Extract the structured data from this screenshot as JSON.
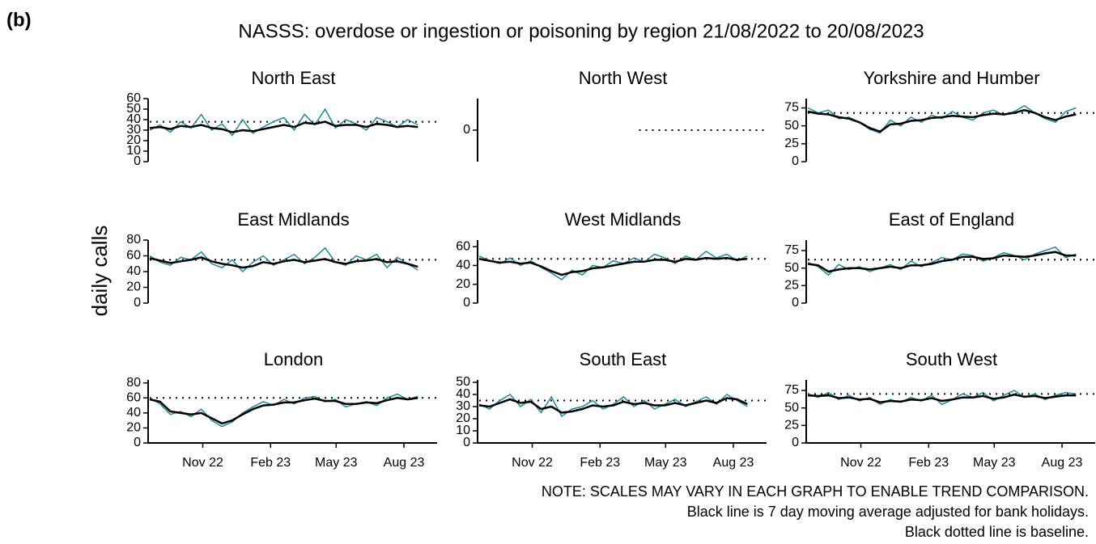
{
  "label_b": "(b)",
  "title": "NASSS: overdose or ingestion or poisoning by region 21/08/2022 to 20/08/2023",
  "y_label": "daily calls",
  "notes": [
    "NOTE: SCALES MAY VARY IN EACH GRAPH TO ENABLE TREND COMPARISON.",
    "Black line is 7 day moving average adjusted for bank holidays.",
    "Black dotted line is baseline."
  ],
  "chart_data": [
    {
      "type": "line",
      "title": "North East",
      "xlim": [
        0,
        390
      ],
      "ylim": [
        0,
        60
      ],
      "yticks": [
        0,
        10,
        20,
        30,
        40,
        50,
        60
      ],
      "baseline": 38,
      "x": [
        0,
        14,
        28,
        42,
        56,
        70,
        84,
        98,
        112,
        126,
        140,
        154,
        168,
        182,
        196,
        210,
        224,
        238,
        252,
        266,
        280,
        294,
        308,
        322,
        336,
        350,
        364
      ],
      "series": [
        {
          "color": "#1a8a9a",
          "values": [
            30,
            35,
            28,
            38,
            32,
            45,
            30,
            36,
            25,
            40,
            27,
            33,
            38,
            42,
            30,
            45,
            35,
            50,
            32,
            40,
            36,
            30,
            42,
            38,
            33,
            40,
            35
          ]
        },
        {
          "color": "#000000",
          "values": [
            32,
            33,
            31,
            34,
            33,
            35,
            32,
            31,
            28,
            30,
            29,
            31,
            33,
            35,
            33,
            37,
            36,
            38,
            34,
            35,
            35,
            33,
            36,
            35,
            33,
            34,
            33
          ]
        }
      ]
    },
    {
      "type": "line",
      "title": "North West",
      "xlim": [
        0,
        390
      ],
      "ylim": [
        -1,
        1
      ],
      "yticks": [
        0
      ],
      "baseline": 0,
      "x": [],
      "series": []
    },
    {
      "type": "line",
      "title": "Yorkshire and Humber",
      "xlim": [
        0,
        390
      ],
      "ylim": [
        0,
        88
      ],
      "yticks": [
        0,
        25,
        50,
        75
      ],
      "baseline": 68,
      "x": [
        0,
        14,
        28,
        42,
        56,
        70,
        84,
        98,
        112,
        126,
        140,
        154,
        168,
        182,
        196,
        210,
        224,
        238,
        252,
        266,
        280,
        294,
        308,
        322,
        336,
        350,
        364
      ],
      "series": [
        {
          "color": "#1a8a9a",
          "values": [
            75,
            68,
            72,
            60,
            62,
            55,
            45,
            40,
            58,
            50,
            62,
            55,
            65,
            60,
            70,
            62,
            58,
            68,
            72,
            65,
            70,
            78,
            68,
            60,
            55,
            70,
            75
          ]
        },
        {
          "color": "#000000",
          "values": [
            70,
            67,
            66,
            62,
            60,
            55,
            47,
            42,
            52,
            53,
            57,
            58,
            61,
            62,
            64,
            63,
            62,
            65,
            67,
            66,
            68,
            72,
            68,
            62,
            58,
            63,
            66
          ]
        }
      ]
    },
    {
      "type": "line",
      "title": "East Midlands",
      "xlim": [
        0,
        390
      ],
      "ylim": [
        0,
        80
      ],
      "yticks": [
        0,
        20,
        40,
        60,
        80
      ],
      "baseline": 55,
      "x": [
        0,
        14,
        28,
        42,
        56,
        70,
        84,
        98,
        112,
        126,
        140,
        154,
        168,
        182,
        196,
        210,
        224,
        238,
        252,
        266,
        280,
        294,
        308,
        322,
        336,
        350,
        364
      ],
      "series": [
        {
          "color": "#1a8a9a",
          "values": [
            60,
            52,
            48,
            58,
            55,
            65,
            50,
            45,
            55,
            40,
            52,
            60,
            48,
            55,
            62,
            50,
            58,
            70,
            52,
            48,
            60,
            55,
            62,
            45,
            58,
            50,
            42
          ]
        },
        {
          "color": "#000000",
          "values": [
            57,
            54,
            51,
            53,
            55,
            58,
            53,
            50,
            48,
            45,
            47,
            52,
            50,
            53,
            55,
            52,
            54,
            56,
            52,
            50,
            53,
            54,
            56,
            52,
            53,
            50,
            46
          ]
        }
      ]
    },
    {
      "type": "line",
      "title": "West Midlands",
      "xlim": [
        0,
        390
      ],
      "ylim": [
        0,
        67
      ],
      "yticks": [
        0,
        20,
        40,
        60
      ],
      "baseline": 47,
      "x": [
        0,
        14,
        28,
        42,
        56,
        70,
        84,
        98,
        112,
        126,
        140,
        154,
        168,
        182,
        196,
        210,
        224,
        238,
        252,
        266,
        280,
        294,
        308,
        322,
        336,
        350,
        364
      ],
      "series": [
        {
          "color": "#1a8a9a",
          "values": [
            50,
            45,
            42,
            48,
            40,
            45,
            38,
            32,
            25,
            35,
            30,
            40,
            38,
            45,
            42,
            48,
            44,
            52,
            48,
            42,
            50,
            46,
            55,
            48,
            52,
            45,
            50
          ]
        },
        {
          "color": "#000000",
          "values": [
            47,
            45,
            43,
            44,
            42,
            43,
            39,
            34,
            30,
            33,
            34,
            37,
            38,
            40,
            42,
            44,
            44,
            46,
            46,
            44,
            47,
            46,
            48,
            47,
            48,
            46,
            47
          ]
        }
      ]
    },
    {
      "type": "line",
      "title": "East of England",
      "xlim": [
        0,
        390
      ],
      "ylim": [
        0,
        90
      ],
      "yticks": [
        0,
        25,
        50,
        75
      ],
      "baseline": 62,
      "x": [
        0,
        14,
        28,
        42,
        56,
        70,
        84,
        98,
        112,
        126,
        140,
        154,
        168,
        182,
        196,
        210,
        224,
        238,
        252,
        266,
        280,
        294,
        308,
        322,
        336,
        350,
        364
      ],
      "series": [
        {
          "color": "#1a8a9a",
          "values": [
            58,
            52,
            40,
            55,
            48,
            52,
            45,
            50,
            55,
            48,
            60,
            52,
            58,
            65,
            62,
            70,
            68,
            60,
            65,
            72,
            68,
            62,
            70,
            75,
            80,
            65,
            70
          ]
        },
        {
          "color": "#000000",
          "values": [
            56,
            54,
            45,
            48,
            50,
            50,
            48,
            50,
            52,
            50,
            54,
            54,
            56,
            60,
            62,
            66,
            66,
            63,
            64,
            68,
            67,
            66,
            68,
            71,
            73,
            68,
            68
          ]
        }
      ]
    },
    {
      "type": "line",
      "title": "London",
      "xlim": [
        0,
        390
      ],
      "ylim": [
        0,
        84
      ],
      "yticks": [
        0,
        20,
        40,
        60,
        80
      ],
      "baseline": 60,
      "xticks": [
        {
          "value": 72,
          "label": "Nov 22"
        },
        {
          "value": 164,
          "label": "Feb 23"
        },
        {
          "value": 253,
          "label": "May 23"
        },
        {
          "value": 345,
          "label": "Aug 23"
        }
      ],
      "x": [
        0,
        14,
        28,
        42,
        56,
        70,
        84,
        98,
        112,
        126,
        140,
        154,
        168,
        182,
        196,
        210,
        224,
        238,
        252,
        266,
        280,
        294,
        308,
        322,
        336,
        350,
        364
      ],
      "series": [
        {
          "color": "#1a8a9a",
          "values": [
            60,
            52,
            38,
            42,
            35,
            45,
            30,
            22,
            28,
            40,
            48,
            55,
            50,
            58,
            52,
            60,
            62,
            55,
            58,
            48,
            52,
            55,
            50,
            60,
            65,
            58,
            62
          ]
        },
        {
          "color": "#000000",
          "values": [
            58,
            55,
            42,
            40,
            38,
            40,
            33,
            26,
            30,
            38,
            45,
            50,
            51,
            54,
            54,
            57,
            59,
            56,
            56,
            52,
            52,
            54,
            53,
            57,
            60,
            58,
            60
          ]
        }
      ]
    },
    {
      "type": "line",
      "title": "South East",
      "xlim": [
        0,
        390
      ],
      "ylim": [
        0,
        52
      ],
      "yticks": [
        0,
        10,
        20,
        30,
        40,
        50
      ],
      "baseline": 35,
      "xticks": [
        {
          "value": 72,
          "label": "Nov 22"
        },
        {
          "value": 164,
          "label": "Feb 23"
        },
        {
          "value": 253,
          "label": "May 23"
        },
        {
          "value": 345,
          "label": "Aug 23"
        }
      ],
      "x": [
        0,
        14,
        28,
        42,
        56,
        70,
        84,
        98,
        112,
        126,
        140,
        154,
        168,
        182,
        196,
        210,
        224,
        238,
        252,
        266,
        280,
        294,
        308,
        322,
        336,
        350,
        364
      ],
      "series": [
        {
          "color": "#1a8a9a",
          "values": [
            32,
            28,
            35,
            40,
            30,
            36,
            25,
            38,
            22,
            28,
            30,
            35,
            28,
            32,
            38,
            30,
            35,
            28,
            32,
            36,
            30,
            34,
            38,
            32,
            40,
            35,
            30
          ]
        },
        {
          "color": "#000000",
          "values": [
            31,
            30,
            33,
            36,
            33,
            34,
            28,
            30,
            25,
            26,
            28,
            31,
            30,
            31,
            34,
            32,
            33,
            31,
            31,
            33,
            31,
            33,
            35,
            33,
            37,
            36,
            32
          ]
        }
      ]
    },
    {
      "type": "line",
      "title": "South West",
      "xlim": [
        0,
        390
      ],
      "ylim": [
        0,
        90
      ],
      "yticks": [
        0,
        25,
        50,
        75
      ],
      "baseline": 70,
      "xticks": [
        {
          "value": 72,
          "label": "Nov 22"
        },
        {
          "value": 164,
          "label": "Feb 23"
        },
        {
          "value": 253,
          "label": "May 23"
        },
        {
          "value": 345,
          "label": "Aug 23"
        }
      ],
      "x": [
        0,
        14,
        28,
        42,
        56,
        70,
        84,
        98,
        112,
        126,
        140,
        154,
        168,
        182,
        196,
        210,
        224,
        238,
        252,
        266,
        280,
        294,
        308,
        322,
        336,
        350,
        364
      ],
      "series": [
        {
          "color": "#1a8a9a",
          "values": [
            70,
            65,
            72,
            62,
            68,
            60,
            65,
            55,
            62,
            58,
            65,
            60,
            68,
            55,
            62,
            70,
            65,
            72,
            60,
            68,
            75,
            65,
            70,
            62,
            68,
            72,
            70
          ]
        },
        {
          "color": "#000000",
          "values": [
            68,
            67,
            68,
            64,
            65,
            62,
            63,
            58,
            60,
            59,
            62,
            61,
            64,
            60,
            62,
            65,
            65,
            67,
            63,
            65,
            69,
            66,
            67,
            64,
            66,
            68,
            68
          ]
        }
      ]
    }
  ]
}
